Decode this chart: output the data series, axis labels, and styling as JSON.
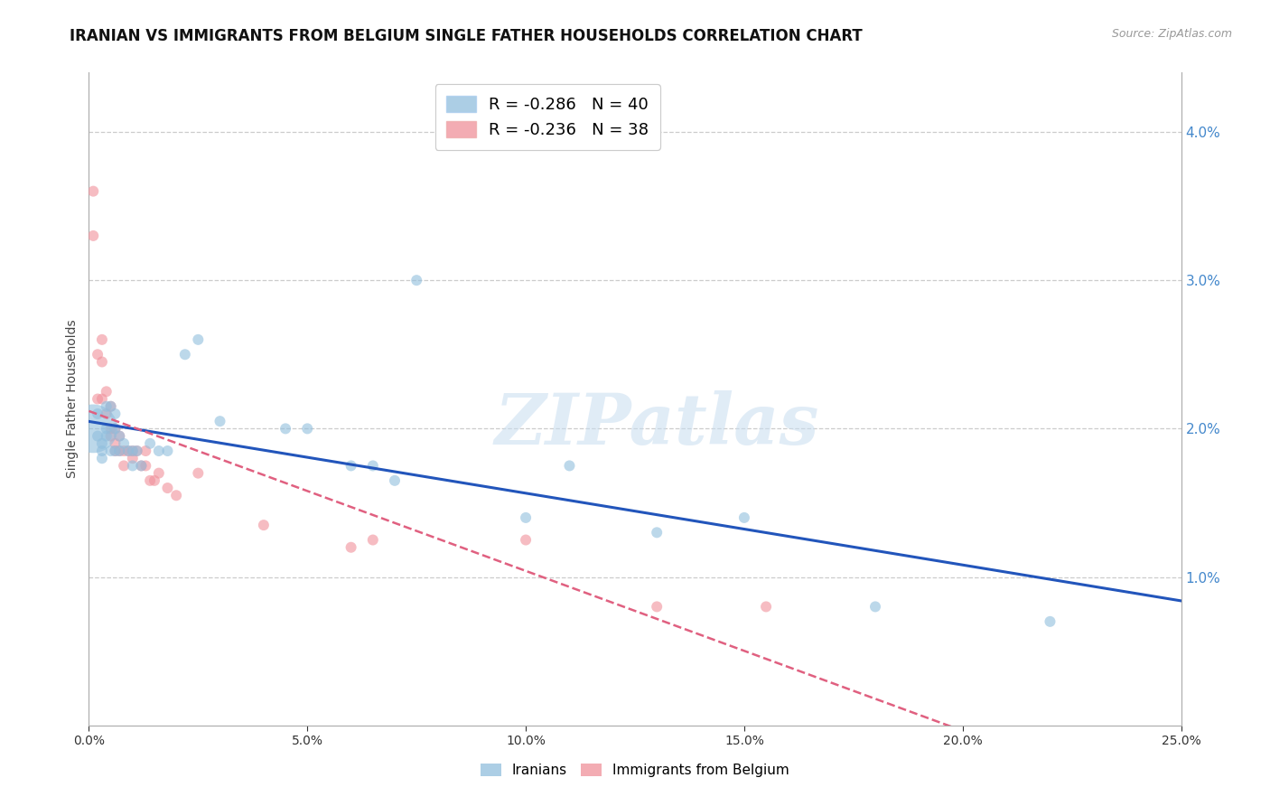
{
  "title": "IRANIAN VS IMMIGRANTS FROM BELGIUM SINGLE FATHER HOUSEHOLDS CORRELATION CHART",
  "source": "Source: ZipAtlas.com",
  "ylabel": "Single Father Households",
  "legend": [
    {
      "label": "R = -0.286   N = 40",
      "color": "#aac8e8"
    },
    {
      "label": "R = -0.236   N = 38",
      "color": "#f4aabc"
    }
  ],
  "legend_labels": [
    "Iranians",
    "Immigrants from Belgium"
  ],
  "iranians_x": [
    0.001,
    0.002,
    0.002,
    0.003,
    0.003,
    0.003,
    0.004,
    0.004,
    0.004,
    0.005,
    0.005,
    0.006,
    0.006,
    0.006,
    0.007,
    0.007,
    0.008,
    0.009,
    0.01,
    0.01,
    0.011,
    0.012,
    0.014,
    0.016,
    0.018,
    0.022,
    0.025,
    0.03,
    0.045,
    0.05,
    0.06,
    0.065,
    0.07,
    0.075,
    0.1,
    0.11,
    0.13,
    0.15,
    0.18,
    0.22
  ],
  "iranians_y": [
    0.02,
    0.021,
    0.0195,
    0.019,
    0.0185,
    0.018,
    0.0215,
    0.02,
    0.0195,
    0.0215,
    0.0185,
    0.021,
    0.02,
    0.0185,
    0.0195,
    0.0185,
    0.019,
    0.0185,
    0.0185,
    0.0175,
    0.0185,
    0.0175,
    0.019,
    0.0185,
    0.0185,
    0.025,
    0.026,
    0.0205,
    0.02,
    0.02,
    0.0175,
    0.0175,
    0.0165,
    0.03,
    0.014,
    0.0175,
    0.013,
    0.014,
    0.008,
    0.007
  ],
  "iranians_size": [
    30,
    30,
    30,
    30,
    30,
    30,
    30,
    30,
    30,
    30,
    30,
    30,
    30,
    30,
    30,
    30,
    30,
    30,
    30,
    30,
    30,
    30,
    30,
    30,
    30,
    30,
    30,
    30,
    30,
    30,
    30,
    30,
    30,
    30,
    30,
    30,
    30,
    30,
    30,
    30
  ],
  "iranians_big_idx": 0,
  "iranians_big_size": 600,
  "belgium_x": [
    0.001,
    0.001,
    0.002,
    0.002,
    0.003,
    0.003,
    0.003,
    0.004,
    0.004,
    0.005,
    0.005,
    0.005,
    0.006,
    0.006,
    0.006,
    0.007,
    0.007,
    0.008,
    0.008,
    0.009,
    0.01,
    0.01,
    0.011,
    0.012,
    0.013,
    0.013,
    0.014,
    0.015,
    0.016,
    0.018,
    0.02,
    0.025,
    0.04,
    0.06,
    0.065,
    0.1,
    0.13,
    0.155
  ],
  "belgium_y": [
    0.036,
    0.033,
    0.025,
    0.022,
    0.026,
    0.0245,
    0.022,
    0.0225,
    0.021,
    0.0215,
    0.02,
    0.0195,
    0.02,
    0.019,
    0.0185,
    0.0195,
    0.0185,
    0.0185,
    0.0175,
    0.0185,
    0.0185,
    0.018,
    0.0185,
    0.0175,
    0.0185,
    0.0175,
    0.0165,
    0.0165,
    0.017,
    0.016,
    0.0155,
    0.017,
    0.0135,
    0.012,
    0.0125,
    0.0125,
    0.008,
    0.008
  ],
  "belgium_size": [
    30,
    30,
    30,
    30,
    30,
    30,
    30,
    30,
    30,
    30,
    30,
    30,
    30,
    30,
    30,
    30,
    30,
    30,
    30,
    30,
    30,
    30,
    30,
    30,
    30,
    30,
    30,
    30,
    30,
    30,
    30,
    30,
    30,
    30,
    30,
    30,
    30,
    30
  ],
  "iranians_color": "#90bedd",
  "belgium_color": "#f0909a",
  "trendline_iranians_color": "#2255bb",
  "trendline_belgium_color": "#e06080",
  "xlim": [
    0.0,
    0.25
  ],
  "ylim": [
    0.0,
    0.044
  ],
  "yticks": [
    0.01,
    0.02,
    0.03,
    0.04
  ],
  "xticks": [
    0.0,
    0.05,
    0.1,
    0.15,
    0.2,
    0.25
  ],
  "background_color": "#ffffff",
  "watermark": "ZIPatlas",
  "title_fontsize": 12,
  "axis_fontsize": 10,
  "label_fontsize": 10
}
